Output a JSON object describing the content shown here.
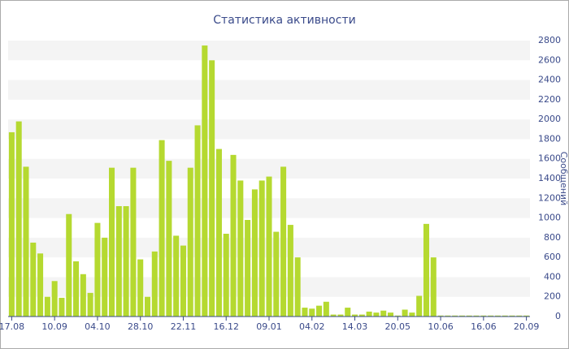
{
  "chart_data": {
    "type": "bar",
    "title": "Статистика активности",
    "y_label": "Сообщений",
    "categories": [
      "17.08",
      null,
      null,
      null,
      null,
      null,
      "10.09",
      null,
      null,
      null,
      null,
      null,
      "04.10",
      null,
      null,
      null,
      null,
      null,
      "28.10",
      null,
      null,
      null,
      null,
      null,
      "22.11",
      null,
      null,
      null,
      null,
      null,
      "16.12",
      null,
      null,
      null,
      null,
      null,
      "09.01",
      null,
      null,
      null,
      null,
      null,
      "04.02",
      null,
      null,
      null,
      null,
      null,
      "14.03",
      null,
      null,
      null,
      null,
      null,
      "20.05",
      null,
      null,
      null,
      null,
      null,
      "10.06",
      null,
      null,
      null,
      null,
      null,
      "16.06",
      null,
      null,
      null,
      null,
      null,
      "20.09"
    ],
    "values": [
      1870,
      1980,
      1520,
      750,
      640,
      200,
      360,
      190,
      1040,
      560,
      430,
      240,
      950,
      800,
      1510,
      1120,
      1120,
      1510,
      580,
      200,
      660,
      1790,
      1580,
      820,
      720,
      1510,
      1940,
      2750,
      2600,
      1700,
      840,
      1640,
      1380,
      980,
      1290,
      1380,
      1420,
      860,
      1520,
      930,
      600,
      90,
      80,
      110,
      150,
      20,
      20,
      90,
      20,
      20,
      50,
      40,
      60,
      40,
      10,
      70,
      40,
      210,
      940,
      600,
      10,
      10,
      10,
      10,
      10,
      10,
      10,
      10,
      10,
      10,
      10,
      10,
      10
    ],
    "color": "#b5d930",
    "ylim": [
      0,
      2800
    ],
    "yticks": [
      0,
      200,
      400,
      600,
      800,
      1000,
      1200,
      1400,
      1600,
      1800,
      2000,
      2200,
      2400,
      2600,
      2800
    ],
    "grid": true
  }
}
